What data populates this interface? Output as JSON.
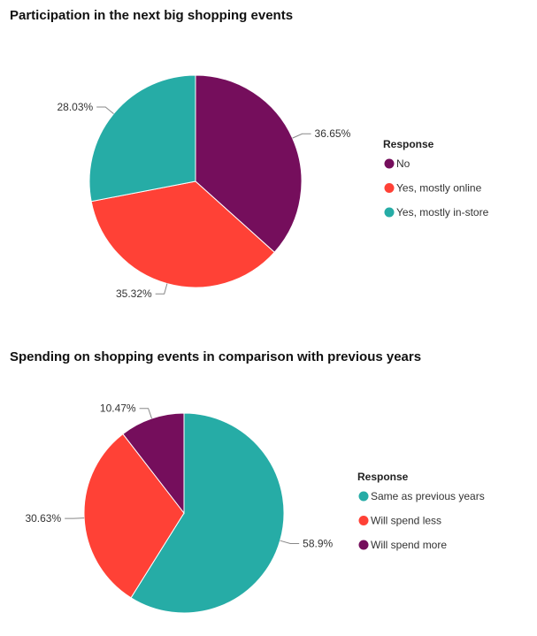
{
  "chart_data": [
    {
      "type": "pie",
      "title": "Participation in the next big shopping events",
      "legend_title": "Response",
      "legend_position": "right",
      "slices": [
        {
          "label": "No",
          "value": 36.65,
          "display": "36.65%",
          "color": "#750e5c"
        },
        {
          "label": "Yes, mostly online",
          "value": 35.32,
          "display": "35.32%",
          "color": "#ff4136"
        },
        {
          "label": "Yes, mostly in-store",
          "value": 28.03,
          "display": "28.03%",
          "color": "#26aca6"
        }
      ]
    },
    {
      "type": "pie",
      "title": "Spending on shopping events in comparison with previous years",
      "legend_title": "Response",
      "legend_position": "right",
      "slices": [
        {
          "label": "Same as previous years",
          "value": 58.9,
          "display": "58.9%",
          "color": "#26aca6"
        },
        {
          "label": "Will spend less",
          "value": 30.63,
          "display": "30.63%",
          "color": "#ff4136"
        },
        {
          "label": "Will spend more",
          "value": 10.47,
          "display": "10.47%",
          "color": "#750e5c"
        }
      ]
    }
  ]
}
